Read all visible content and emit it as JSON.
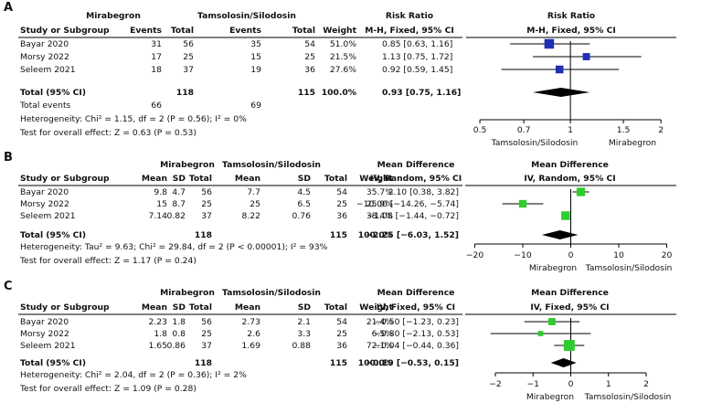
{
  "chart_data": [
    {
      "panel_label": "A",
      "type": "forest",
      "group_labels": [
        "Mirabegron",
        "Tamsolosin/Silodosin"
      ],
      "effect_title": "Risk Ratio",
      "effect_method": "M-H, Fixed, 95% CI",
      "col_headers": [
        "Study or Subgroup",
        "Events",
        "Total",
        "Events",
        "Total",
        "Weight"
      ],
      "studies": [
        {
          "name": "Bayar 2020",
          "c1": "31",
          "c2": "56",
          "c3": "35",
          "c4": "54",
          "weight": "51.0%",
          "ci_text": "0.85 [0.63, 1.16]",
          "est": 0.85,
          "lo": 0.63,
          "hi": 1.16,
          "w": 51.0
        },
        {
          "name": "Morsy 2022",
          "c1": "17",
          "c2": "25",
          "c3": "15",
          "c4": "25",
          "weight": "21.5%",
          "ci_text": "1.13 [0.75, 1.72]",
          "est": 1.13,
          "lo": 0.75,
          "hi": 1.72,
          "w": 21.5
        },
        {
          "name": "Seleem 2021",
          "c1": "18",
          "c2": "37",
          "c3": "19",
          "c4": "36",
          "weight": "27.6%",
          "ci_text": "0.92 [0.59, 1.45]",
          "est": 0.92,
          "lo": 0.59,
          "hi": 1.45,
          "w": 27.6
        }
      ],
      "total": {
        "label": "Total (95% CI)",
        "n1": "118",
        "n2": "115",
        "weight": "100.0%",
        "ci_text": "0.93 [0.75, 1.16]",
        "est": 0.93,
        "lo": 0.75,
        "hi": 1.16
      },
      "total_events": {
        "label": "Total events",
        "e1": "66",
        "e2": "69"
      },
      "heterogeneity": "Heterogeneity: Chi² = 1.15, df = 2 (P = 0.56); I² = 0%",
      "overall_effect": "Test for overall effect: Z = 0.63 (P = 0.53)",
      "axis": {
        "scale": "log",
        "min": 0.45,
        "max": 2.25,
        "null": 1,
        "ticks": [
          0.5,
          0.7,
          1,
          1.5,
          2
        ],
        "tick_labels": [
          "0.5",
          "0.7",
          "1",
          "1.5",
          "2"
        ]
      },
      "favours": [
        "Tamsolosin/Silodosin",
        "Mirabegron"
      ]
    },
    {
      "panel_label": "B",
      "type": "forest",
      "group_labels": [
        "Mirabegron",
        "Tamsolosin/Silodosin"
      ],
      "effect_title": "Mean Difference",
      "effect_method": "IV, Random, 95% CI",
      "col_headers": [
        "Study or Subgroup",
        "Mean",
        "SD",
        "Total",
        "Mean",
        "SD",
        "Total",
        "Weight"
      ],
      "studies": [
        {
          "name": "Bayar 2020",
          "m1": "9.8",
          "sd1": "4.7",
          "n1": "56",
          "m2": "7.7",
          "sd2": "4.5",
          "n2": "54",
          "weight": "35.7%",
          "ci_text": "2.10 [0.38, 3.82]",
          "est": 2.1,
          "lo": 0.38,
          "hi": 3.82,
          "w": 35.7
        },
        {
          "name": "Morsy 2022",
          "m1": "15",
          "sd1": "8.7",
          "n1": "25",
          "m2": "25",
          "sd2": "6.5",
          "n2": "25",
          "weight": "25.9%",
          "ci_text": "−10.00 [−14.26, −5.74]",
          "est": -10.0,
          "lo": -14.26,
          "hi": -5.74,
          "w": 25.9
        },
        {
          "name": "Seleem 2021",
          "m1": "7.14",
          "sd1": "0.82",
          "n1": "37",
          "m2": "8.22",
          "sd2": "0.76",
          "n2": "36",
          "weight": "38.4%",
          "ci_text": "−1.08 [−1.44, −0.72]",
          "est": -1.08,
          "lo": -1.44,
          "hi": -0.72,
          "w": 38.4
        }
      ],
      "total": {
        "label": "Total (95% CI)",
        "n1": "118",
        "n2": "115",
        "weight": "100.0%",
        "ci_text": "−2.25 [−6.03, 1.52]",
        "est": -2.25,
        "lo": -6.03,
        "hi": 1.52
      },
      "heterogeneity": "Heterogeneity: Tau² = 9.63; Chi² = 29.84, df = 2 (P < 0.00001); I² = 93%",
      "overall_effect": "Test for overall effect: Z = 1.17 (P = 0.24)",
      "axis": {
        "scale": "linear",
        "min": -22,
        "max": 22,
        "null": 0,
        "ticks": [
          -20,
          -10,
          0,
          10,
          20
        ],
        "tick_labels": [
          "−20",
          "−10",
          "0",
          "10",
          "20"
        ]
      },
      "favours": [
        "Mirabegron",
        "Tamsolosin/Silodosin"
      ]
    },
    {
      "panel_label": "C",
      "type": "forest",
      "group_labels": [
        "Mirabegron",
        "Tamsolosin/Silodosin"
      ],
      "effect_title": "Mean Difference",
      "effect_method": "IV, Fixed, 95% CI",
      "col_headers": [
        "Study or Subgroup",
        "Mean",
        "SD",
        "Total",
        "Mean",
        "SD",
        "Total",
        "Weight"
      ],
      "studies": [
        {
          "name": "Bayar 2020",
          "m1": "2.23",
          "sd1": "1.8",
          "n1": "56",
          "m2": "2.73",
          "sd2": "2.1",
          "n2": "54",
          "weight": "21.4%",
          "ci_text": "−0.50 [−1.23, 0.23]",
          "est": -0.5,
          "lo": -1.23,
          "hi": 0.23,
          "w": 21.4
        },
        {
          "name": "Morsy 2022",
          "m1": "1.8",
          "sd1": "0.8",
          "n1": "25",
          "m2": "2.6",
          "sd2": "3.3",
          "n2": "25",
          "weight": "6.5%",
          "ci_text": "−0.80 [−2.13, 0.53]",
          "est": -0.8,
          "lo": -2.13,
          "hi": 0.53,
          "w": 6.5
        },
        {
          "name": "Seleem 2021",
          "m1": "1.65",
          "sd1": "0.86",
          "n1": "37",
          "m2": "1.69",
          "sd2": "0.88",
          "n2": "36",
          "weight": "72.1%",
          "ci_text": "−0.04 [−0.44, 0.36]",
          "est": -0.04,
          "lo": -0.44,
          "hi": 0.36,
          "w": 72.1
        }
      ],
      "total": {
        "label": "Total (95% CI)",
        "n1": "118",
        "n2": "115",
        "weight": "100.0%",
        "ci_text": "−0.19 [−0.53, 0.15]",
        "est": -0.19,
        "lo": -0.53,
        "hi": 0.15
      },
      "heterogeneity": "Heterogeneity: Chi² = 2.04, df = 2 (P = 0.36); I² = 2%",
      "overall_effect": "Test for overall effect: Z = 1.09 (P = 0.28)",
      "axis": {
        "scale": "linear",
        "min": -2.8,
        "max": 2.8,
        "null": 0,
        "ticks": [
          -2,
          -1,
          0,
          1,
          2
        ],
        "tick_labels": [
          "−2",
          "−1",
          "0",
          "1",
          "2"
        ]
      },
      "favours": [
        "Mirabegron",
        "Tamsolosin/Silodosin"
      ]
    }
  ],
  "colors": {
    "marker_a": "#1f2fb4",
    "marker_bc": "#2ecc2e",
    "diamond": "#000000",
    "line": "#000000"
  }
}
